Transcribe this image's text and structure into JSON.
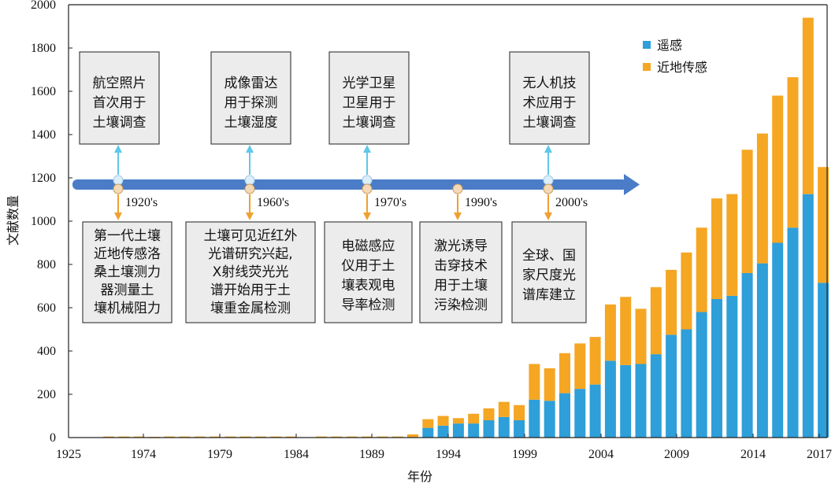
{
  "chart_data": {
    "type": "bar",
    "stacked": true,
    "xlabel": "年份",
    "ylabel": "文献数量",
    "ylim": [
      0,
      2000
    ],
    "yticks": [
      0,
      200,
      400,
      600,
      800,
      1000,
      1200,
      1400,
      1600,
      1800,
      2000
    ],
    "xtick_labels": [
      "1925",
      "1974",
      "1979",
      "1984",
      "1989",
      "1994",
      "1999",
      "2004",
      "2009",
      "2014",
      "2017"
    ],
    "categories": [
      "1925",
      "1970",
      "1971",
      "1972",
      "1973",
      "1974",
      "1975",
      "1976",
      "1977",
      "1978",
      "1979",
      "1980",
      "1981",
      "1982",
      "1983",
      "1984",
      "1985",
      "1986",
      "1987",
      "1988",
      "1989",
      "1990",
      "1991",
      "1992",
      "1993",
      "1994",
      "1995",
      "1996",
      "1997",
      "1998",
      "1999",
      "2000",
      "2001",
      "2002",
      "2003",
      "2004",
      "2005",
      "2006",
      "2007",
      "2008",
      "2009",
      "2010",
      "2011",
      "2012",
      "2013",
      "2014",
      "2015",
      "2016",
      "2017"
    ],
    "series": [
      {
        "name": "遥感",
        "color": "#2e9fd8",
        "values": [
          0,
          0,
          0,
          0,
          0,
          0,
          0,
          0,
          0,
          0,
          0,
          0,
          0,
          0,
          0,
          0,
          0,
          0,
          0,
          0,
          0,
          0,
          45,
          55,
          65,
          65,
          80,
          95,
          80,
          175,
          170,
          205,
          225,
          245,
          355,
          335,
          340,
          385,
          475,
          500,
          580,
          640,
          655,
          760,
          805,
          900,
          970,
          1125,
          715
        ]
      },
      {
        "name": "近地传感",
        "color": "#f5a623",
        "values": [
          0,
          5,
          5,
          5,
          3,
          5,
          5,
          5,
          5,
          5,
          5,
          5,
          5,
          5,
          0,
          5,
          5,
          5,
          5,
          5,
          5,
          15,
          40,
          45,
          25,
          45,
          55,
          70,
          70,
          165,
          150,
          185,
          210,
          220,
          260,
          315,
          255,
          310,
          300,
          355,
          390,
          465,
          470,
          570,
          600,
          680,
          695,
          815,
          535
        ]
      }
    ],
    "legend_position": "top-right",
    "grid": false
  },
  "timeline": {
    "eras": [
      {
        "label": "1920's",
        "above": "航空照片\n首次用于\n土壤调查",
        "below": "第一代土壤\n近地传感洛\n桑土壤测力\n器测量土\n壤机械阻力"
      },
      {
        "label": "1960's",
        "above": "成像雷达\n用于探测\n土壤湿度",
        "below": "土壤可见近红外\n光谱研究兴起,\nX射线荧光光\n谱开始用于土\n壤重金属检测"
      },
      {
        "label": "1970's",
        "above": "光学卫星\n卫星用于\n土壤调查",
        "below": "电磁感应\n仪用于土\n壤表观电\n导率检测"
      },
      {
        "label": "1990's",
        "above": "",
        "below": "激光诱导\n击穿技术\n用于土壤\n污染检测"
      },
      {
        "label": "2000's",
        "above": "无人机技\n术应用于\n土壤调查",
        "below": "全球、国\n家尺度光\n谱库建立"
      }
    ]
  },
  "colors": {
    "timeline_arrow": "#4a7cc7",
    "up_arrow": "#5ec8e8",
    "down_arrow": "#f0a030",
    "box_fill": "#ececec",
    "box_stroke": "#444444"
  }
}
